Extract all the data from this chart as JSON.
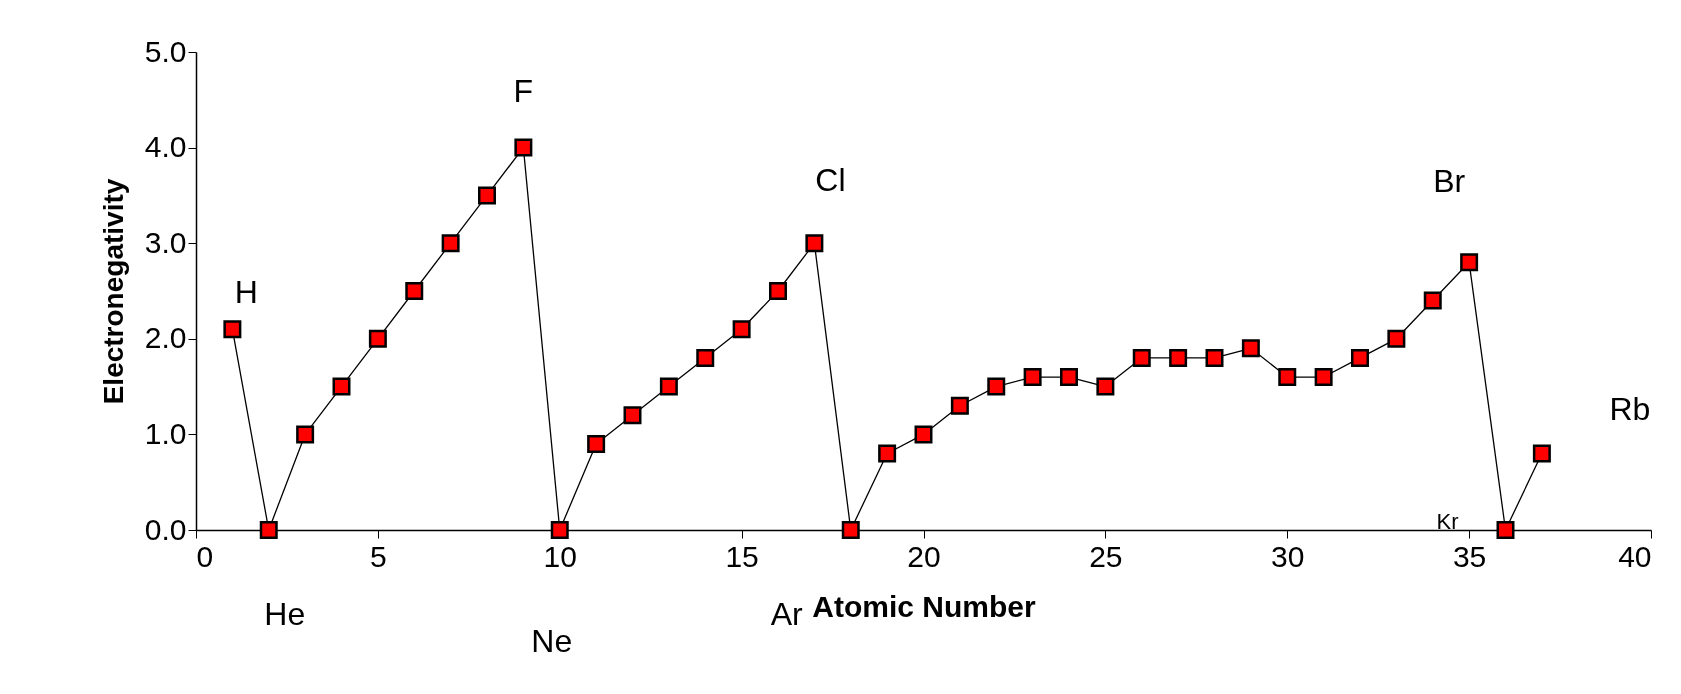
{
  "chart_data": {
    "type": "line",
    "xlabel": "Atomic Number",
    "ylabel": "Electronegativity",
    "x": [
      1,
      2,
      3,
      4,
      5,
      6,
      7,
      8,
      9,
      10,
      11,
      12,
      13,
      14,
      15,
      16,
      17,
      18,
      19,
      20,
      21,
      22,
      23,
      24,
      25,
      26,
      27,
      28,
      29,
      30,
      31,
      32,
      33,
      34,
      35,
      36,
      37
    ],
    "series": [
      {
        "color": "#ff0000",
        "values": [
          2.1,
          0,
          1.0,
          1.5,
          2.0,
          2.5,
          3.0,
          3.5,
          4.0,
          0,
          0.9,
          1.2,
          1.5,
          1.8,
          2.1,
          2.5,
          3.0,
          0,
          0.8,
          1.0,
          1.3,
          1.5,
          1.6,
          1.6,
          1.5,
          1.8,
          1.8,
          1.8,
          1.9,
          1.6,
          1.6,
          1.8,
          2.0,
          2.4,
          2.8,
          0,
          0.8
        ]
      }
    ],
    "xlim": [
      0,
      40
    ],
    "xticks": [
      0,
      5,
      10,
      15,
      20,
      25,
      30,
      35,
      40
    ],
    "ylim": [
      0,
      5
    ],
    "yticks": [
      {
        "value": 0,
        "label": "0.0"
      },
      {
        "value": 1,
        "label": "1.0"
      },
      {
        "value": 2,
        "label": "2.0"
      },
      {
        "value": 3,
        "label": "3.0"
      },
      {
        "value": 4,
        "label": "4.0"
      },
      {
        "value": 5,
        "label": "5.0"
      }
    ],
    "marker": "square",
    "grid": false,
    "annotations": [
      {
        "text": "H",
        "x": 1,
        "y": 2.1
      },
      {
        "text": "He",
        "x": 2,
        "y": 0
      },
      {
        "text": "F",
        "x": 9,
        "y": 4.0
      },
      {
        "text": "Ne",
        "x": 10,
        "y": 0
      },
      {
        "text": "Cl",
        "x": 17,
        "y": 3.0
      },
      {
        "text": "Ar",
        "x": 18,
        "y": 0
      },
      {
        "text": "Br",
        "x": 35,
        "y": 2.8
      },
      {
        "text": "Kr",
        "x": 36,
        "y": 0
      },
      {
        "text": "Rb",
        "x": 37,
        "y": 0.8
      }
    ]
  }
}
